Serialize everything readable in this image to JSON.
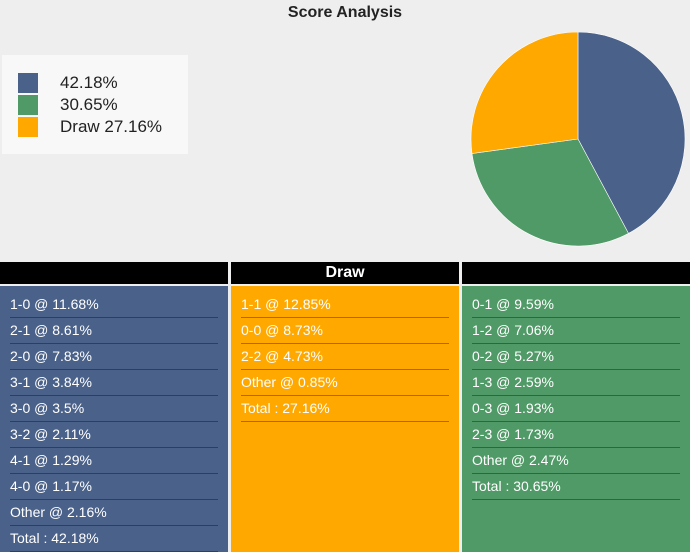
{
  "title": "Score Analysis",
  "colors": {
    "home": "#4a6189",
    "away": "#4f9a66",
    "draw": "#ffa800"
  },
  "legend": [
    {
      "label": "42.18%",
      "color": "#4a6189"
    },
    {
      "label": "30.65%",
      "color": "#4f9a66"
    },
    {
      "label": "Draw 27.16%",
      "color": "#ffa800"
    }
  ],
  "chart_data": {
    "type": "pie",
    "title": "Score Analysis",
    "slices": [
      {
        "label": "42.18%",
        "value": 42.18,
        "color": "#4a6189"
      },
      {
        "label": "30.65%",
        "value": 30.65,
        "color": "#4f9a66"
      },
      {
        "label": "Draw 27.16%",
        "value": 27.16,
        "color": "#ffa800"
      }
    ],
    "legend_position": "top-left"
  },
  "columns": [
    {
      "header": "",
      "color": "#4a6189",
      "rows": [
        "1-0 @ 11.68%",
        "2-1 @ 8.61%",
        "2-0 @ 7.83%",
        "3-1 @ 3.84%",
        "3-0 @ 3.5%",
        "3-2 @ 2.11%",
        "4-1 @ 1.29%",
        "4-0 @ 1.17%",
        "Other @ 2.16%",
        "Total : 42.18%"
      ]
    },
    {
      "header": "Draw",
      "color": "#ffa800",
      "rows": [
        "1-1 @ 12.85%",
        "0-0 @ 8.73%",
        "2-2 @ 4.73%",
        "Other @ 0.85%",
        "Total : 27.16%"
      ]
    },
    {
      "header": "",
      "color": "#4f9a66",
      "rows": [
        "0-1 @ 9.59%",
        "1-2 @ 7.06%",
        "0-2 @ 5.27%",
        "1-3 @ 2.59%",
        "0-3 @ 1.93%",
        "2-3 @ 1.73%",
        "Other @ 2.47%",
        "Total : 30.65%"
      ]
    }
  ]
}
